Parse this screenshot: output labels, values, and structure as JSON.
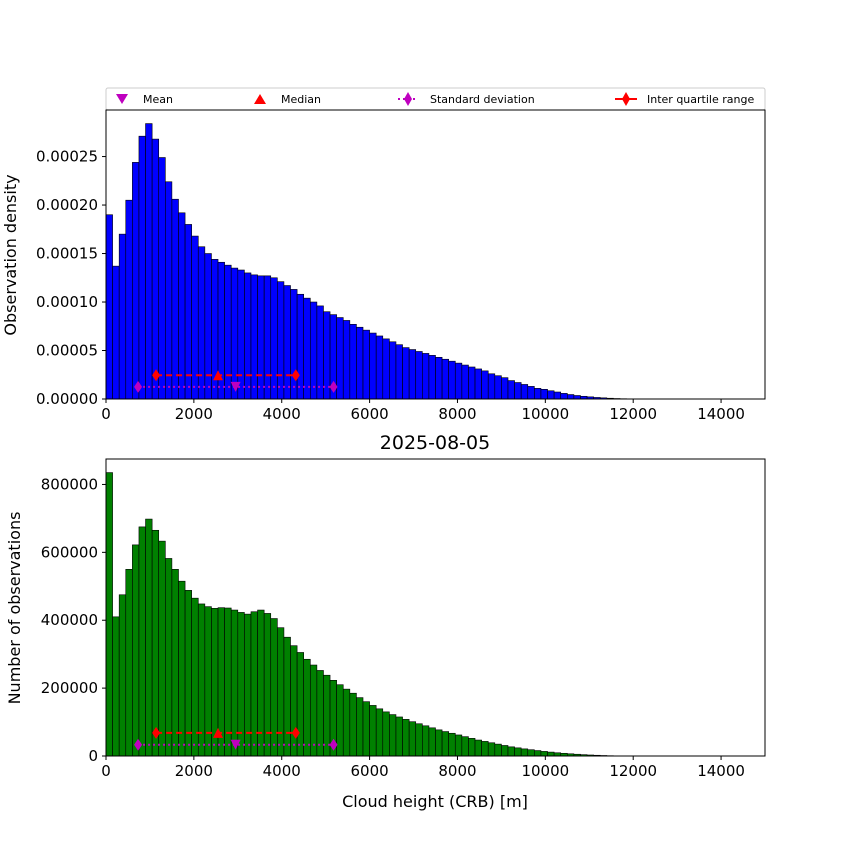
{
  "legend": {
    "items": [
      {
        "label": "Mean",
        "marker": "triangle-down",
        "color": "#bf00bf",
        "line": "none"
      },
      {
        "label": "Median",
        "marker": "triangle-up",
        "color": "#ff0000",
        "line": "none"
      },
      {
        "label": "Standard deviation",
        "marker": "thin-diamond",
        "color": "#bf00bf",
        "line": "dotted"
      },
      {
        "label": "Inter quartile range",
        "marker": "thin-diamond",
        "color": "#ff0000",
        "line": "solid"
      }
    ],
    "placement": "above top panel, full width"
  },
  "chart_data": [
    {
      "type": "bar",
      "panel": "top",
      "title": "",
      "xlabel": "",
      "ylabel": "Observation density",
      "bar_color": "#0000ff",
      "xlim": [
        0,
        15000
      ],
      "ylim": [
        0,
        0.000298
      ],
      "xticks": [
        0,
        2000,
        4000,
        6000,
        8000,
        10000,
        12000,
        14000
      ],
      "xtick_labels": [
        "0",
        "2000",
        "4000",
        "6000",
        "8000",
        "10000",
        "12000",
        "14000"
      ],
      "yticks": [
        0,
        5e-05,
        0.0001,
        0.00015,
        0.0002,
        0.00025
      ],
      "ytick_labels": [
        "0.00000",
        "0.00005",
        "0.00010",
        "0.00015",
        "0.00020",
        "0.00025"
      ],
      "bin_start": 0,
      "bin_width": 150,
      "values": [
        0.00019,
        0.000137,
        0.00017,
        0.000205,
        0.000244,
        0.000271,
        0.000284,
        0.000268,
        0.000249,
        0.000224,
        0.000206,
        0.000192,
        0.00018,
        0.000168,
        0.000157,
        0.00015,
        0.000144,
        0.000141,
        0.000138,
        0.000135,
        0.000133,
        0.00013,
        0.000128,
        0.000127,
        0.000127,
        0.000125,
        0.000121,
        0.000117,
        0.000113,
        0.000108,
        0.000104,
        0.0001,
        9.6e-05,
        9e-05,
        8.7e-05,
        8.4e-05,
        8.1e-05,
        7.7e-05,
        7.4e-05,
        7.1e-05,
        6.8e-05,
        6.5e-05,
        6.2e-05,
        5.9e-05,
        5.6e-05,
        5.3e-05,
        5.1e-05,
        4.9e-05,
        4.7e-05,
        4.5e-05,
        4.3e-05,
        4.1e-05,
        3.9e-05,
        3.7e-05,
        3.5e-05,
        3.3e-05,
        3.1e-05,
        2.9e-05,
        2.6e-05,
        2.4e-05,
        2.2e-05,
        1.9e-05,
        1.7e-05,
        1.5e-05,
        1.3e-05,
        1.1e-05,
        1e-05,
        8.5e-06,
        7.2e-06,
        5.8e-06,
        4.6e-06,
        3.6e-06,
        2.8e-06,
        2.2e-06,
        1.6e-06,
        1.2e-06,
        8e-07,
        5e-07,
        3e-07
      ],
      "stats": {
        "mean": 2950,
        "median": 2550,
        "std_low": 730,
        "std_high": 5180,
        "iqr_low": 1140,
        "iqr_high": 4320,
        "mean_y": 1.25e-05,
        "iqr_y": 2.45e-05
      }
    },
    {
      "type": "bar",
      "panel": "bottom",
      "title": "2025-08-05",
      "xlabel": "Cloud height (CRB) [m]",
      "ylabel": "Number of observations",
      "bar_color": "#008000",
      "xlim": [
        0,
        15000
      ],
      "ylim": [
        0,
        875000
      ],
      "xticks": [
        0,
        2000,
        4000,
        6000,
        8000,
        10000,
        12000,
        14000
      ],
      "xtick_labels": [
        "0",
        "2000",
        "4000",
        "6000",
        "8000",
        "10000",
        "12000",
        "14000"
      ],
      "yticks": [
        0,
        200000,
        400000,
        600000,
        800000
      ],
      "ytick_labels": [
        "0",
        "200000",
        "400000",
        "600000",
        "800000"
      ],
      "bin_start": 0,
      "bin_width": 150,
      "values": [
        835000,
        410000,
        475000,
        550000,
        622000,
        675000,
        698000,
        665000,
        633000,
        582000,
        550000,
        515000,
        488000,
        465000,
        448000,
        440000,
        435000,
        437000,
        436000,
        430000,
        423000,
        418000,
        425000,
        430000,
        420000,
        405000,
        378000,
        350000,
        325000,
        305000,
        285000,
        268000,
        252000,
        238000,
        223000,
        210000,
        197000,
        185000,
        172000,
        160000,
        149000,
        139000,
        130000,
        122000,
        115000,
        108000,
        101000,
        95000,
        89000,
        83000,
        77000,
        72000,
        67000,
        62000,
        57000,
        52000,
        47000,
        43000,
        39000,
        35000,
        31000,
        27000,
        24000,
        21000,
        18500,
        16000,
        13500,
        11500,
        9500,
        8000,
        6500,
        5200,
        4000,
        3000,
        2200,
        1500,
        900,
        500,
        250
      ],
      "stats": {
        "mean": 2950,
        "median": 2550,
        "std_low": 730,
        "std_high": 5180,
        "iqr_low": 1140,
        "iqr_high": 4320,
        "mean_y": 33000,
        "iqr_y": 68000
      }
    }
  ]
}
